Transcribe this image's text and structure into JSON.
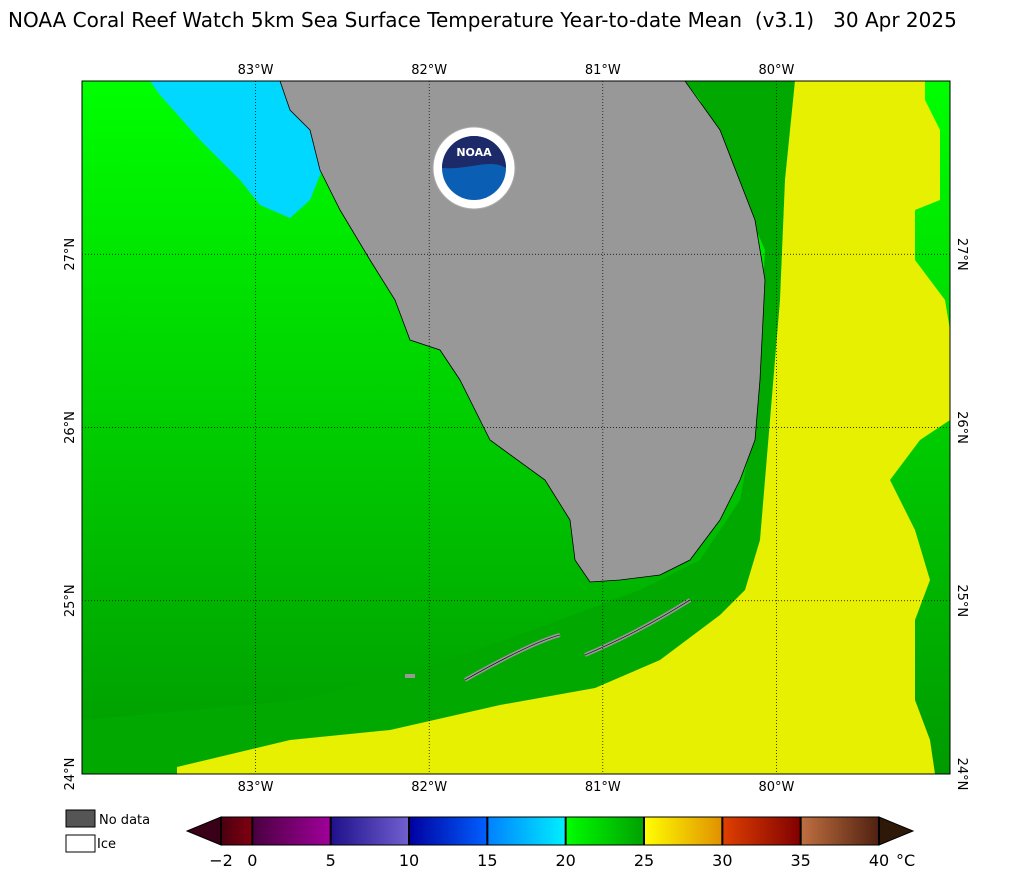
{
  "title": "NOAA Coral Reef Watch 5km Sea Surface Temperature Year-to-date Mean  (v3.1)   30 Apr 2025",
  "map": {
    "lon_range": [
      -84,
      -79
    ],
    "lat_range": [
      24,
      28
    ],
    "lon_ticks": [
      {
        "value": -83,
        "label": "83°W"
      },
      {
        "value": -82,
        "label": "82°W"
      },
      {
        "value": -81,
        "label": "81°W"
      },
      {
        "value": -80,
        "label": "80°W"
      }
    ],
    "lat_ticks": [
      {
        "value": 27,
        "label": "27°N"
      },
      {
        "value": 26,
        "label": "26°N"
      },
      {
        "value": 25,
        "label": "25°N"
      },
      {
        "value": 24,
        "label": "24°N"
      }
    ],
    "logo": "NOAA"
  },
  "legend": {
    "no_data": "No data",
    "ice": "Ice"
  },
  "colorbar": {
    "lim": [
      -2,
      40
    ],
    "ticks": [
      {
        "value": -2,
        "label": "−2"
      },
      0,
      5,
      10,
      15,
      20,
      25,
      30,
      35,
      40
    ],
    "unit": "°C",
    "extend_colors": [
      "#3a0018",
      "#2e1808"
    ],
    "segment_colors": [
      [
        "#4a0010",
        "#800010"
      ],
      [
        "#4a0040",
        "#a0009a"
      ],
      [
        "#20108a",
        "#7060d0"
      ],
      [
        "#0000a0",
        "#0060ff"
      ],
      [
        "#0080ff",
        "#00f0ff"
      ],
      [
        "#00ff00",
        "#00a000"
      ],
      [
        "#ffff00",
        "#e09000"
      ],
      [
        "#e04000",
        "#800000"
      ],
      [
        "#c07040",
        "#502010"
      ]
    ]
  }
}
